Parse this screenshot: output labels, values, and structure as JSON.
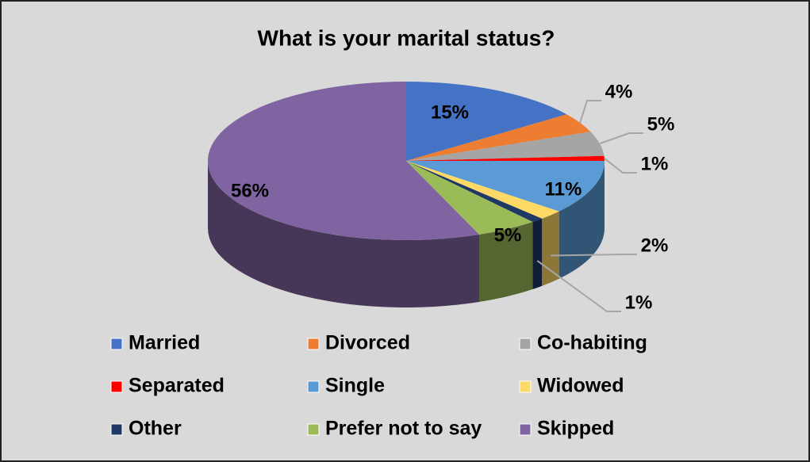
{
  "chart_data": {
    "type": "pie",
    "title": "What is your marital status?",
    "categories": [
      "Married",
      "Divorced",
      "Co-habiting",
      "Separated",
      "Single",
      "Widowed",
      "Other",
      "Prefer not to say",
      "Skipped"
    ],
    "values": [
      15,
      4,
      5,
      1,
      11,
      2,
      1,
      5,
      56
    ],
    "value_labels": [
      "15%",
      "4%",
      "5%",
      "1%",
      "11%",
      "2%",
      "1%",
      "5%",
      "56%"
    ],
    "colors": [
      "#4472c4",
      "#ed7d31",
      "#a5a5a5",
      "#ff0000",
      "#5b9bd5",
      "#ffd966",
      "#1f3864",
      "#9bbb59",
      "#8064a2"
    ],
    "legend": "bottom"
  }
}
